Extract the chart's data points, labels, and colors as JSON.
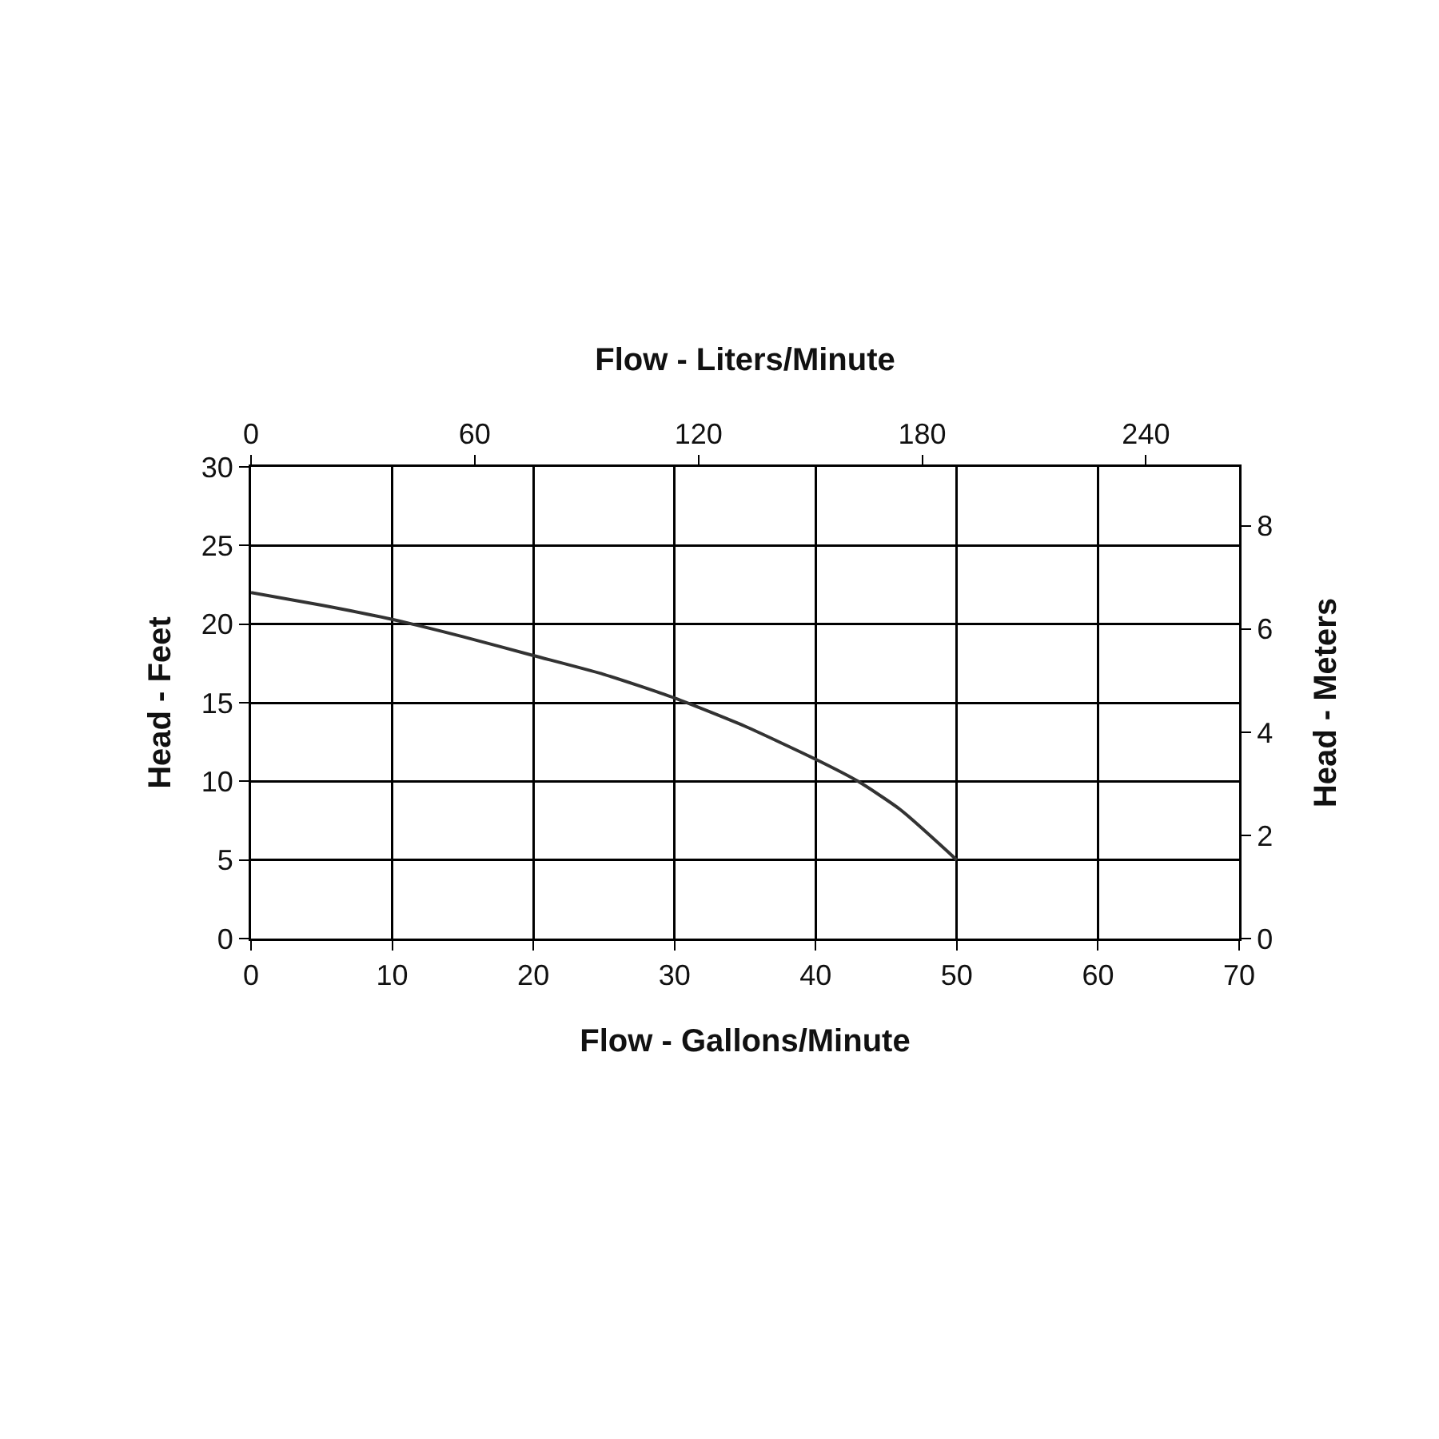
{
  "chart_data": {
    "type": "line",
    "xlabel": "Flow - Gallons/Minute",
    "ylabel": "Head - Feet",
    "x2label": "Flow - Liters/Minute",
    "y2label": "Head - Meters",
    "series": [
      {
        "color": "#333333",
        "x": [
          0,
          5,
          10,
          15,
          20,
          25,
          30,
          35,
          40,
          43,
          46,
          50
        ],
        "values": [
          22,
          21.2,
          20.3,
          19.2,
          18,
          16.8,
          15.3,
          13.5,
          11.4,
          10,
          8.2,
          5
        ]
      }
    ],
    "xlim": [
      0,
      70
    ],
    "xticks": [
      0,
      10,
      20,
      30,
      40,
      50,
      60,
      70
    ],
    "ylim": [
      0,
      30
    ],
    "yticks": [
      0,
      5,
      10,
      15,
      20,
      25,
      30
    ],
    "x2lim": [
      0,
      265
    ],
    "x2ticks": [
      0,
      60,
      120,
      180,
      240
    ],
    "y2lim": [
      0,
      9.144
    ],
    "y2ticks": [
      0,
      2,
      4,
      6,
      8
    ],
    "grid": true,
    "marker": "none",
    "line_style": "solid"
  }
}
